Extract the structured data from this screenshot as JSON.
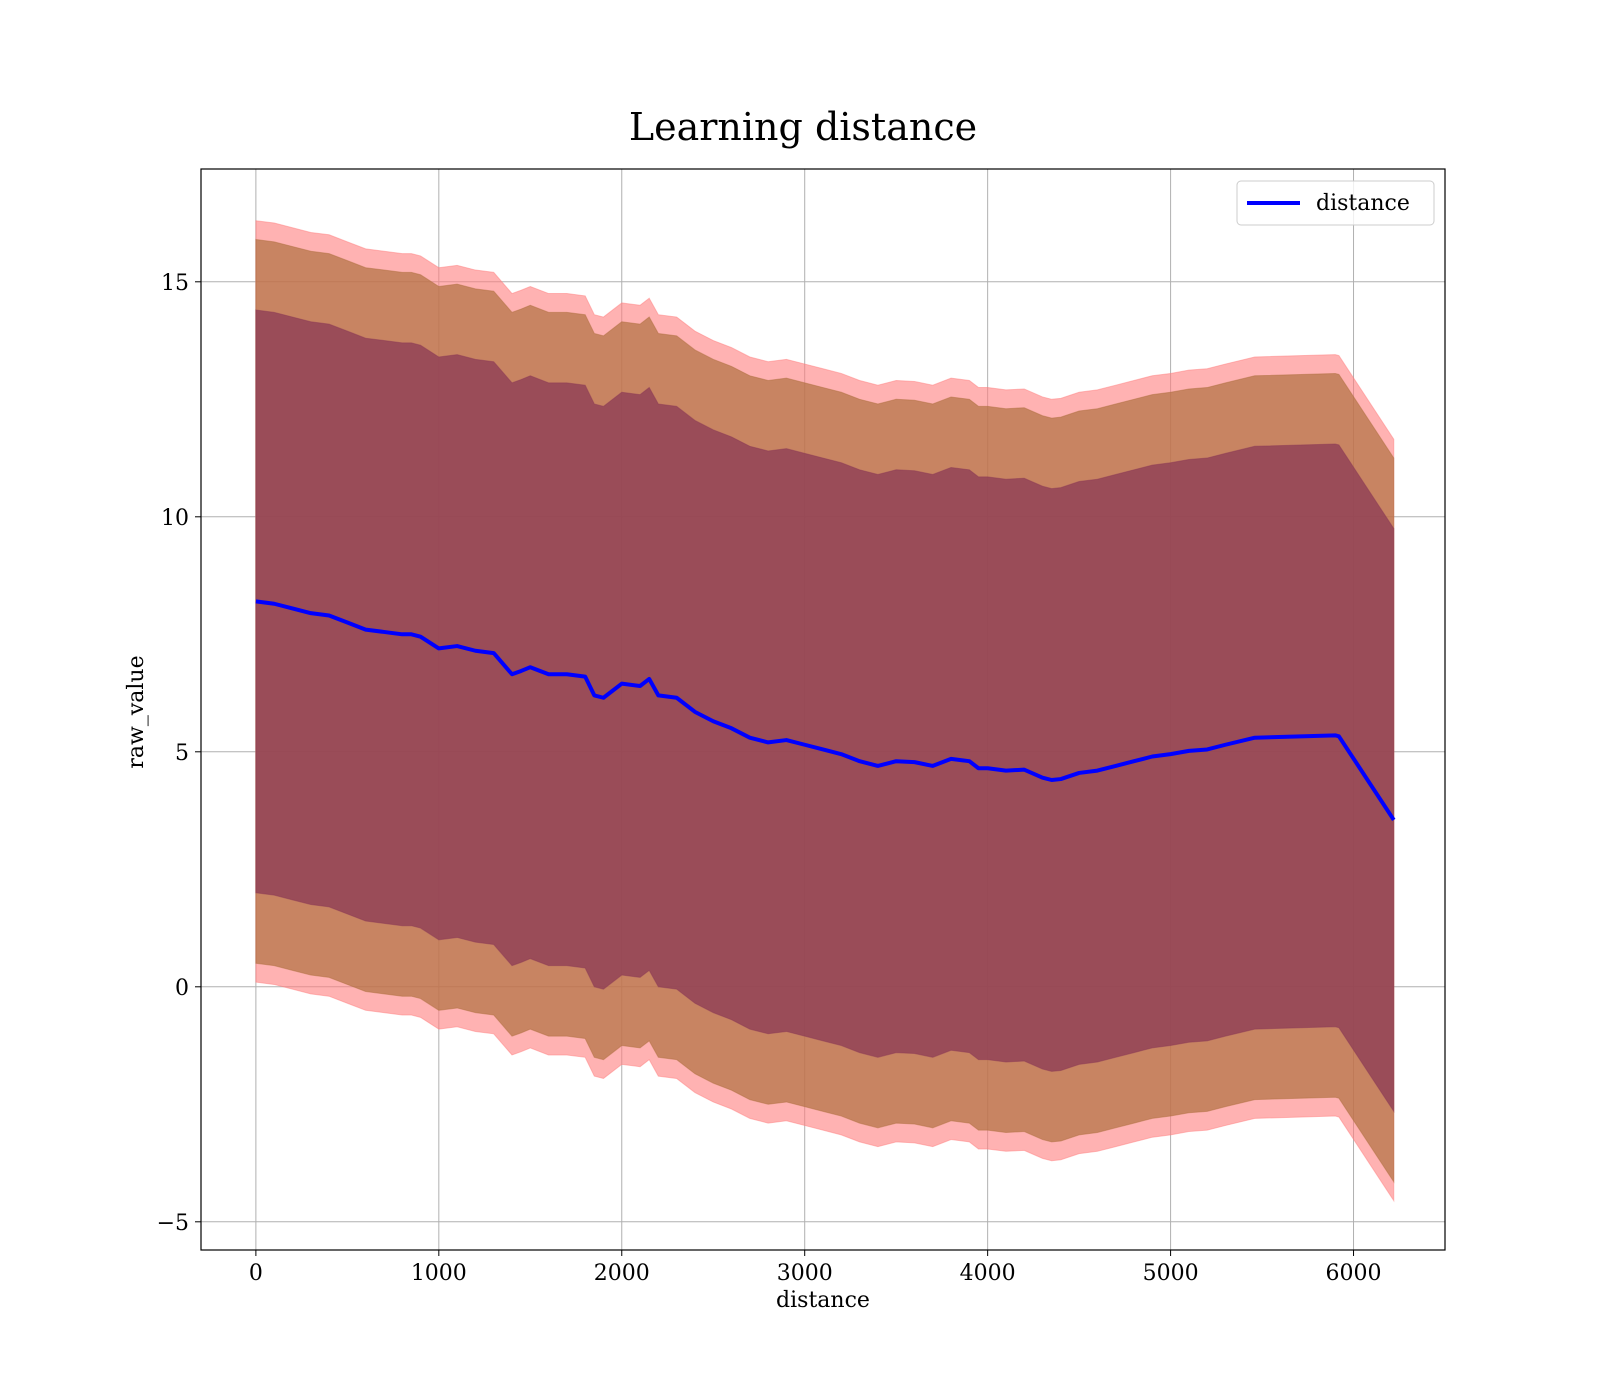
{
  "chart_data": {
    "type": "line",
    "title": "Learning distance",
    "xlabel": "distance",
    "ylabel": "raw_value",
    "xlim": [
      -300,
      6500
    ],
    "ylim": [
      -5.6,
      17.4
    ],
    "x_ticks": [
      0,
      1000,
      2000,
      3000,
      4000,
      5000,
      6000
    ],
    "x_tick_labels": [
      "0",
      "1000",
      "2000",
      "3000",
      "4000",
      "5000",
      "6000"
    ],
    "y_ticks": [
      -5,
      0,
      5,
      10,
      15
    ],
    "y_tick_labels": [
      "−5",
      "0",
      "5",
      "10",
      "15"
    ],
    "grid": true,
    "legend_position": "upper right",
    "series": [
      {
        "name": "distance",
        "color": "#0000ff",
        "x": [
          0,
          100,
          200,
          300,
          400,
          500,
          600,
          700,
          800,
          850,
          900,
          1000,
          1100,
          1200,
          1300,
          1400,
          1450,
          1500,
          1600,
          1700,
          1800,
          1850,
          1900,
          2000,
          2100,
          2150,
          2200,
          2300,
          2400,
          2500,
          2600,
          2700,
          2800,
          2900,
          3000,
          3100,
          3200,
          3300,
          3400,
          3500,
          3600,
          3700,
          3800,
          3900,
          3950,
          4000,
          4100,
          4200,
          4300,
          4350,
          4400,
          4500,
          4600,
          4700,
          4800,
          4900,
          5000,
          5100,
          5200,
          5300,
          5460,
          5900,
          5920,
          6220
        ],
        "mean": [
          8.2,
          8.15,
          8.05,
          7.95,
          7.9,
          7.75,
          7.6,
          7.55,
          7.5,
          7.5,
          7.45,
          7.2,
          7.25,
          7.15,
          7.1,
          6.65,
          6.72,
          6.8,
          6.65,
          6.65,
          6.6,
          6.2,
          6.15,
          6.45,
          6.4,
          6.55,
          6.2,
          6.15,
          5.85,
          5.65,
          5.5,
          5.3,
          5.2,
          5.25,
          5.15,
          5.05,
          4.95,
          4.8,
          4.7,
          4.8,
          4.78,
          4.7,
          4.85,
          4.8,
          4.65,
          4.65,
          4.6,
          4.62,
          4.45,
          4.4,
          4.42,
          4.55,
          4.6,
          4.7,
          4.8,
          4.9,
          4.95,
          5.02,
          5.05,
          5.15,
          5.3,
          5.35,
          5.33,
          3.55
        ],
        "band_1std": [
          6.2,
          6.2,
          6.2,
          6.2,
          6.2,
          6.2,
          6.2,
          6.2,
          6.2,
          6.2,
          6.2,
          6.2,
          6.2,
          6.2,
          6.2,
          6.2,
          6.2,
          6.2,
          6.2,
          6.2,
          6.2,
          6.2,
          6.2,
          6.2,
          6.2,
          6.2,
          6.2,
          6.2,
          6.2,
          6.2,
          6.2,
          6.2,
          6.2,
          6.2,
          6.2,
          6.2,
          6.2,
          6.2,
          6.2,
          6.2,
          6.2,
          6.2,
          6.2,
          6.2,
          6.2,
          6.2,
          6.2,
          6.2,
          6.2,
          6.2,
          6.2,
          6.2,
          6.2,
          6.2,
          6.2,
          6.2,
          6.2,
          6.2,
          6.2,
          6.2,
          6.2,
          6.2,
          6.2,
          6.2
        ],
        "band_outer": [
          7.7,
          7.7,
          7.7,
          7.7,
          7.7,
          7.7,
          7.7,
          7.7,
          7.7,
          7.7,
          7.7,
          7.7,
          7.7,
          7.7,
          7.7,
          7.7,
          7.7,
          7.7,
          7.7,
          7.7,
          7.7,
          7.7,
          7.7,
          7.7,
          7.7,
          7.7,
          7.7,
          7.7,
          7.7,
          7.7,
          7.7,
          7.7,
          7.7,
          7.7,
          7.7,
          7.7,
          7.7,
          7.7,
          7.7,
          7.7,
          7.7,
          7.7,
          7.7,
          7.7,
          7.7,
          7.7,
          7.7,
          7.7,
          7.7,
          7.7,
          7.7,
          7.7,
          7.7,
          7.7,
          7.7,
          7.7,
          7.7,
          7.7,
          7.7,
          7.7,
          7.7,
          7.7,
          7.7,
          7.7
        ],
        "band_extra": [
          0.4,
          0.4,
          0.4,
          0.4,
          0.4,
          0.4,
          0.4,
          0.4,
          0.4,
          0.4,
          0.4,
          0.4,
          0.4,
          0.4,
          0.4,
          0.4,
          0.4,
          0.4,
          0.4,
          0.4,
          0.4,
          0.4,
          0.4,
          0.4,
          0.4,
          0.4,
          0.4,
          0.4,
          0.4,
          0.4,
          0.4,
          0.4,
          0.4,
          0.4,
          0.4,
          0.4,
          0.4,
          0.4,
          0.4,
          0.4,
          0.4,
          0.4,
          0.4,
          0.4,
          0.4,
          0.4,
          0.4,
          0.4,
          0.4,
          0.4,
          0.4,
          0.4,
          0.4,
          0.4,
          0.4,
          0.4,
          0.4,
          0.4,
          0.4,
          0.4,
          0.4,
          0.4,
          0.4,
          0.4
        ]
      }
    ],
    "colors": {
      "line": "#0000ff",
      "band_inner": "#8b3a55",
      "band_middle": "#b07040",
      "band_outer": "#ff7f7f",
      "grid": "#b0b0b0"
    }
  }
}
